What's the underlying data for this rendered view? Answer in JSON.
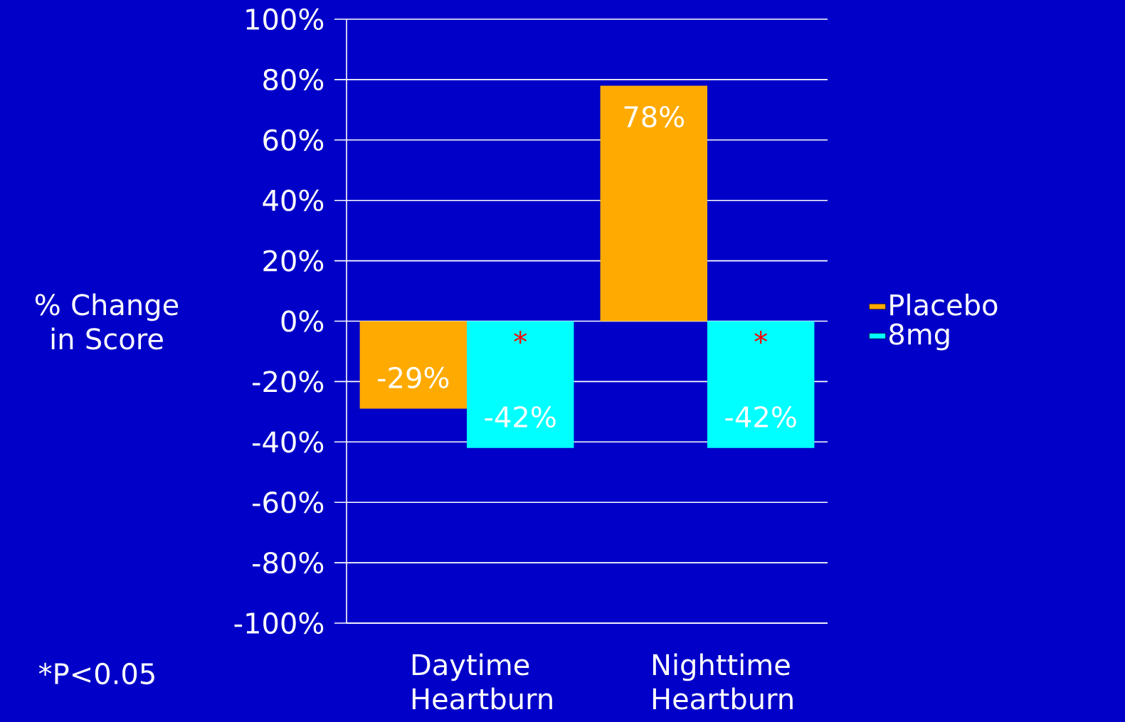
{
  "chart_data": {
    "type": "bar",
    "ylabel": "% Change in Score",
    "categories": [
      "Daytime Heartburn",
      "Nighttime Heartburn"
    ],
    "series": [
      {
        "name": "Placebo",
        "color": "#ffaa00",
        "values": [
          -29,
          78
        ],
        "value_labels": [
          "-29%",
          "78%"
        ]
      },
      {
        "name": "8mg",
        "color": "#00ffff",
        "values": [
          -42,
          -42
        ],
        "value_labels": [
          "-42%",
          "-42%"
        ]
      }
    ],
    "ylim": [
      -100,
      100
    ],
    "yticks": [
      {
        "value": -100,
        "label": "-100%"
      },
      {
        "value": -80,
        "label": "-80%"
      },
      {
        "value": -60,
        "label": "-60%"
      },
      {
        "value": -40,
        "label": "-40%"
      },
      {
        "value": -20,
        "label": "-20%"
      },
      {
        "value": 0,
        "label": "0%"
      },
      {
        "value": 20,
        "label": "20%"
      },
      {
        "value": 40,
        "label": "40%"
      },
      {
        "value": 60,
        "label": "60%"
      },
      {
        "value": 80,
        "label": "80%"
      },
      {
        "value": 100,
        "label": "100%"
      }
    ],
    "grid": "y",
    "legend": "right",
    "annotations": [
      "*",
      "*",
      "*P<0.05"
    ]
  }
}
